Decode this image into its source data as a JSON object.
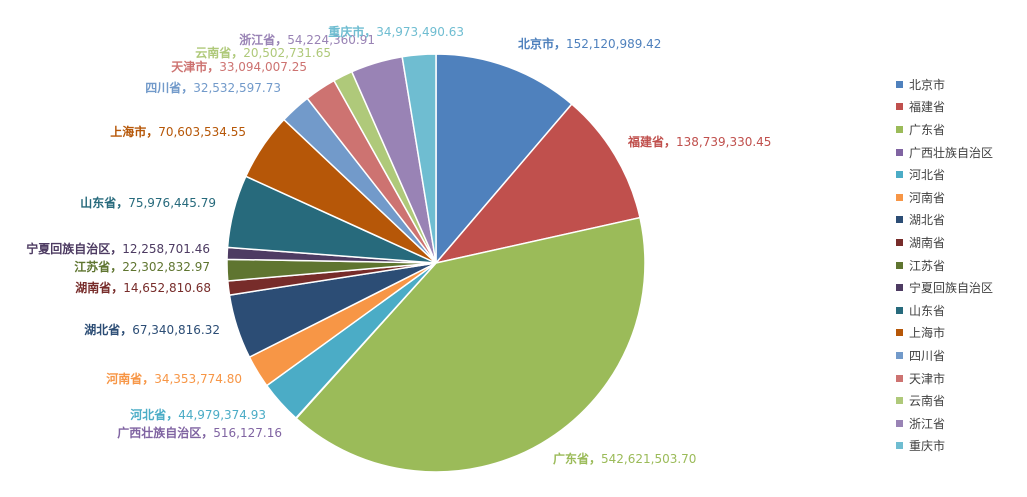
{
  "chart_data": {
    "type": "pie",
    "title": "",
    "slices": [
      {
        "name": "北京市",
        "value": 152120989.42,
        "value_label": "152,120,989.42",
        "color": "#4F81BD"
      },
      {
        "name": "福建省",
        "value": 138739330.45,
        "value_label": "138,739,330.45",
        "color": "#C0504D"
      },
      {
        "name": "广东省",
        "value": 542621503.7,
        "value_label": "542,621,503.70",
        "color": "#9BBB59"
      },
      {
        "name": "广西壮族自治区",
        "value": 516127.16,
        "value_label": "516,127.16",
        "color": "#8064A2"
      },
      {
        "name": "河北省",
        "value": 44979374.93,
        "value_label": "44,979,374.93",
        "color": "#4BACC6"
      },
      {
        "name": "河南省",
        "value": 34353774.8,
        "value_label": "34,353,774.80",
        "color": "#F79646"
      },
      {
        "name": "湖北省",
        "value": 67340816.32,
        "value_label": "67,340,816.32",
        "color": "#2C4D75"
      },
      {
        "name": "湖南省",
        "value": 14652810.68,
        "value_label": "14,652,810.68",
        "color": "#772C2A"
      },
      {
        "name": "江苏省",
        "value": 22302832.97,
        "value_label": "22,302,832.97",
        "color": "#5F7530"
      },
      {
        "name": "宁夏回族自治区",
        "value": 12258701.46,
        "value_label": "12,258,701.46",
        "color": "#4D3B62"
      },
      {
        "name": "山东省",
        "value": 75976445.79,
        "value_label": "75,976,445.79",
        "color": "#276A7C"
      },
      {
        "name": "上海市",
        "value": 70603534.55,
        "value_label": "70,603,534.55",
        "color": "#B65708"
      },
      {
        "name": "四川省",
        "value": 32532597.73,
        "value_label": "32,532,597.73",
        "color": "#729ACA"
      },
      {
        "name": "天津市",
        "value": 33094007.25,
        "value_label": "33,094,007.25",
        "color": "#CD7371"
      },
      {
        "name": "云南省",
        "value": 20502731.65,
        "value_label": "20,502,731.65",
        "color": "#AFC97A"
      },
      {
        "name": "浙江省",
        "value": 54224360.91,
        "value_label": "54,224,360.91",
        "color": "#9983B5"
      },
      {
        "name": "重庆市",
        "value": 34973490.63,
        "value_label": "34,973,490.63",
        "color": "#6FBDD1"
      }
    ],
    "legend_position": "right",
    "start_angle": "12 o'clock",
    "direction": "clockwise",
    "label_separator": "，"
  }
}
